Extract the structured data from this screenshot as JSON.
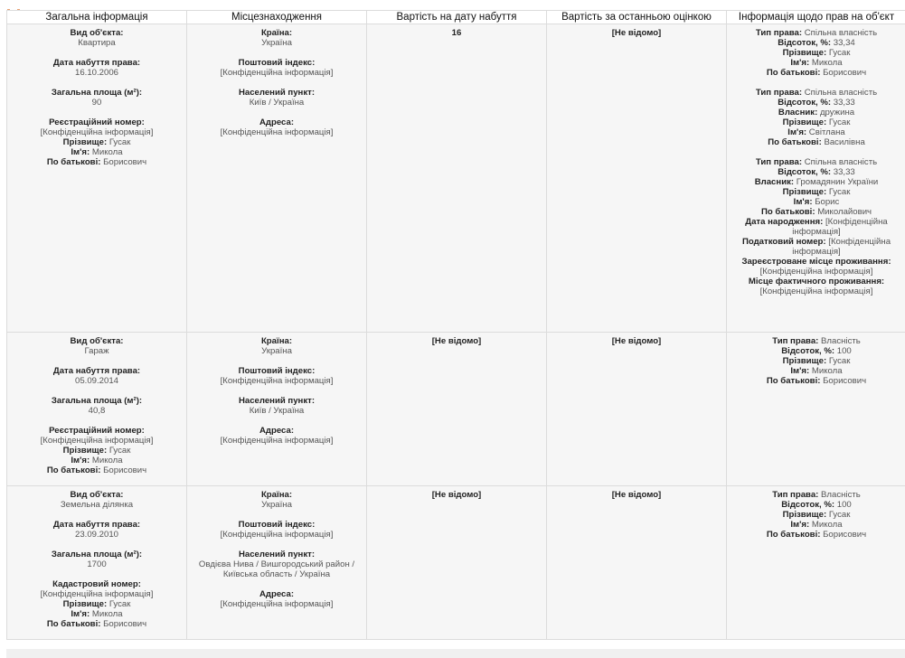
{
  "headers": [
    "Загальна інформація",
    "Місцезнаходження",
    "Вартість на дату набуття",
    "Вартість за останньою оцінкою",
    "Інформація щодо прав на об'єкт"
  ],
  "rows": [
    {
      "general": [
        [
          {
            "label": "Вид об'єкта:",
            "value": "Квартира",
            "br": true
          }
        ],
        [
          {
            "label": "Дата набуття права:",
            "value": "16.10.2006",
            "br": true
          }
        ],
        [
          {
            "label": "Загальна площа (м²):",
            "value": "90",
            "br": true
          }
        ],
        [
          {
            "label": "Реєстраційний номер:",
            "value": "[Конфіденційна інформація]",
            "br": true
          },
          {
            "label": "Прізвище:",
            "value": "Гусак"
          },
          {
            "label": "Ім'я:",
            "value": "Микола"
          },
          {
            "label": "По батькові:",
            "value": "Борисович"
          }
        ]
      ],
      "location": [
        [
          {
            "label": "Країна:",
            "value": "Україна",
            "br": true
          }
        ],
        [
          {
            "label": "Поштовий індекс:",
            "value": "[Конфіденційна інформація]",
            "br": true
          }
        ],
        [
          {
            "label": "Населений пункт:",
            "value": "Київ / Україна",
            "br": true
          }
        ],
        [
          {
            "label": "Адреса:",
            "value": "[Конфіденційна інформація]",
            "br": true
          }
        ]
      ],
      "cost_acquisition": "16",
      "cost_last": "[Не відомо]",
      "rights": [
        [
          {
            "label": "Тип права:",
            "value": "Спільна власність"
          },
          {
            "label": "Відсоток, %:",
            "value": "33,34"
          },
          {
            "label": "Прізвище:",
            "value": "Гусак"
          },
          {
            "label": "Ім'я:",
            "value": "Микола"
          },
          {
            "label": "По батькові:",
            "value": "Борисович"
          }
        ],
        [
          {
            "label": "Тип права:",
            "value": "Спільна власність"
          },
          {
            "label": "Відсоток, %:",
            "value": "33,33"
          },
          {
            "label": "Власник:",
            "value": "дружина"
          },
          {
            "label": "Прізвище:",
            "value": "Гусак"
          },
          {
            "label": "Ім'я:",
            "value": "Світлана"
          },
          {
            "label": "По батькові:",
            "value": "Василівна"
          }
        ],
        [
          {
            "label": "Тип права:",
            "value": "Спільна власність"
          },
          {
            "label": "Відсоток, %:",
            "value": "33,33"
          },
          {
            "label": "Власник:",
            "value": "Громадянин України"
          },
          {
            "label": "Прізвище:",
            "value": "Гусак"
          },
          {
            "label": "Ім'я:",
            "value": "Борис"
          },
          {
            "label": "По батькові:",
            "value": "Миколайович"
          },
          {
            "label": "Дата народження:",
            "value": "[Конфіденційна інформація]"
          },
          {
            "label": "Податковий номер:",
            "value": "[Конфіденційна інформація]"
          },
          {
            "label": "Зареєстроване місце проживання:",
            "value": "[Конфіденційна інформація]"
          },
          {
            "label": "Місце фактичного проживання:",
            "value": "[Конфіденційна інформація]"
          }
        ]
      ]
    },
    {
      "general": [
        [
          {
            "label": "Вид об'єкта:",
            "value": "Гараж",
            "br": true
          }
        ],
        [
          {
            "label": "Дата набуття права:",
            "value": "05.09.2014",
            "br": true
          }
        ],
        [
          {
            "label": "Загальна площа (м²):",
            "value": "40,8",
            "br": true
          }
        ],
        [
          {
            "label": "Реєстраційний номер:",
            "value": "[Конфіденційна інформація]",
            "br": true
          },
          {
            "label": "Прізвище:",
            "value": "Гусак"
          },
          {
            "label": "Ім'я:",
            "value": "Микола"
          },
          {
            "label": "По батькові:",
            "value": "Борисович"
          }
        ]
      ],
      "location": [
        [
          {
            "label": "Країна:",
            "value": "Україна",
            "br": true
          }
        ],
        [
          {
            "label": "Поштовий індекс:",
            "value": "[Конфіденційна інформація]",
            "br": true
          }
        ],
        [
          {
            "label": "Населений пункт:",
            "value": "Київ / Україна",
            "br": true
          }
        ],
        [
          {
            "label": "Адреса:",
            "value": "[Конфіденційна інформація]",
            "br": true
          }
        ]
      ],
      "cost_acquisition": "[Не відомо]",
      "cost_last": "[Не відомо]",
      "rights": [
        [
          {
            "label": "Тип права:",
            "value": "Власність"
          },
          {
            "label": "Відсоток, %:",
            "value": "100"
          },
          {
            "label": "Прізвище:",
            "value": "Гусак"
          },
          {
            "label": "Ім'я:",
            "value": "Микола"
          },
          {
            "label": "По батькові:",
            "value": "Борисович"
          }
        ]
      ]
    },
    {
      "general": [
        [
          {
            "label": "Вид об'єкта:",
            "value": "Земельна ділянка",
            "br": true
          }
        ],
        [
          {
            "label": "Дата набуття права:",
            "value": "23.09.2010",
            "br": true
          }
        ],
        [
          {
            "label": "Загальна площа (м²):",
            "value": "1700",
            "br": true
          }
        ],
        [
          {
            "label": "Кадастровий номер:",
            "value": "[Конфіденційна інформація]",
            "br": true
          },
          {
            "label": "Прізвище:",
            "value": "Гусак"
          },
          {
            "label": "Ім'я:",
            "value": "Микола"
          },
          {
            "label": "По батькові:",
            "value": "Борисович"
          }
        ]
      ],
      "location": [
        [
          {
            "label": "Країна:",
            "value": "Україна",
            "br": true
          }
        ],
        [
          {
            "label": "Поштовий індекс:",
            "value": "[Конфіденційна інформація]",
            "br": true
          }
        ],
        [
          {
            "label": "Населений пункт:",
            "value": "Овдієва Нива / Вишгородський район / Київська область / Україна",
            "br": true
          }
        ],
        [
          {
            "label": "Адреса:",
            "value": "[Конфіденційна інформація]",
            "br": true
          }
        ]
      ],
      "cost_acquisition": "[Не відомо]",
      "cost_last": "[Не відомо]",
      "rights": [
        [
          {
            "label": "Тип права:",
            "value": "Власність"
          },
          {
            "label": "Відсоток, %:",
            "value": "100"
          },
          {
            "label": "Прізвище:",
            "value": "Гусак"
          },
          {
            "label": "Ім'я:",
            "value": "Микола"
          },
          {
            "label": "По батькові:",
            "value": "Борисович"
          }
        ]
      ]
    }
  ]
}
